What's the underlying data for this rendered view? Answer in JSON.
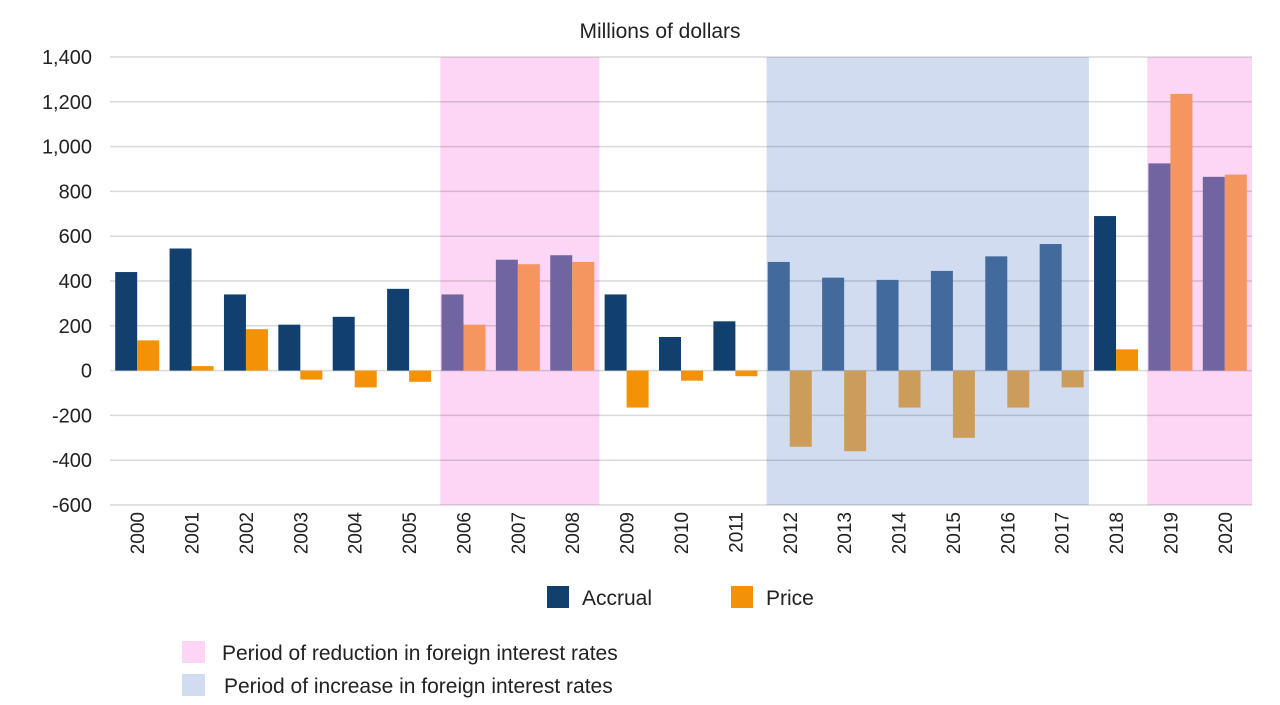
{
  "chart_data": {
    "type": "bar",
    "title": "Millions of dollars",
    "xlabel": "",
    "ylabel": "",
    "ylim": [
      -600,
      1400
    ],
    "yticks": [
      1400,
      1200,
      1000,
      800,
      600,
      400,
      200,
      0,
      -200,
      -400,
      -600
    ],
    "ytick_labels": [
      "1,400",
      "1,200",
      "1,000",
      "800",
      "600",
      "400",
      "200",
      "0",
      "-200",
      "-400",
      "-600"
    ],
    "grid": true,
    "legend_placement": "bottom",
    "categories": [
      "2000",
      "2001",
      "2002",
      "2003",
      "2004",
      "2005",
      "2006",
      "2007",
      "2008",
      "2009",
      "2010",
      "2011",
      "2012",
      "2013",
      "2014",
      "2015",
      "2016",
      "2017",
      "2018",
      "2019",
      "2020"
    ],
    "series": [
      {
        "name": "Accrual",
        "color": "#11406f",
        "values": [
          440,
          545,
          340,
          205,
          240,
          365,
          340,
          495,
          515,
          340,
          150,
          220,
          485,
          415,
          405,
          445,
          510,
          565,
          690,
          925,
          865
        ]
      },
      {
        "name": "Price",
        "color": "#f39207",
        "values": [
          135,
          20,
          185,
          -40,
          -75,
          -50,
          205,
          475,
          485,
          -165,
          -45,
          -25,
          -340,
          -360,
          -165,
          -300,
          -165,
          -75,
          95,
          1235,
          875
        ]
      }
    ],
    "shaded_periods": [
      {
        "label": "Period of reduction in foreign interest rates",
        "color": "#fcd6f4",
        "from": "2006",
        "to": "2008",
        "accrual_color": "#7065a0",
        "price_color": "#f5955f"
      },
      {
        "label": "Period of increase in foreign interest rates",
        "color": "#d2dcf0",
        "from": "2012",
        "to": "2017",
        "accrual_color": "#426a9c",
        "price_color": "#cc9c5b"
      },
      {
        "label": "Period of reduction in foreign interest rates",
        "color": "#fcd6f4",
        "from": "2019",
        "to": "2020",
        "accrual_color": "#7065a0",
        "price_color": "#f5955f"
      }
    ],
    "period_legend": [
      {
        "label": "Period of reduction in foreign interest rates",
        "color": "#fcd6f4"
      },
      {
        "label": "Period of increase in foreign interest rates",
        "color": "#d2dcf0"
      }
    ]
  }
}
